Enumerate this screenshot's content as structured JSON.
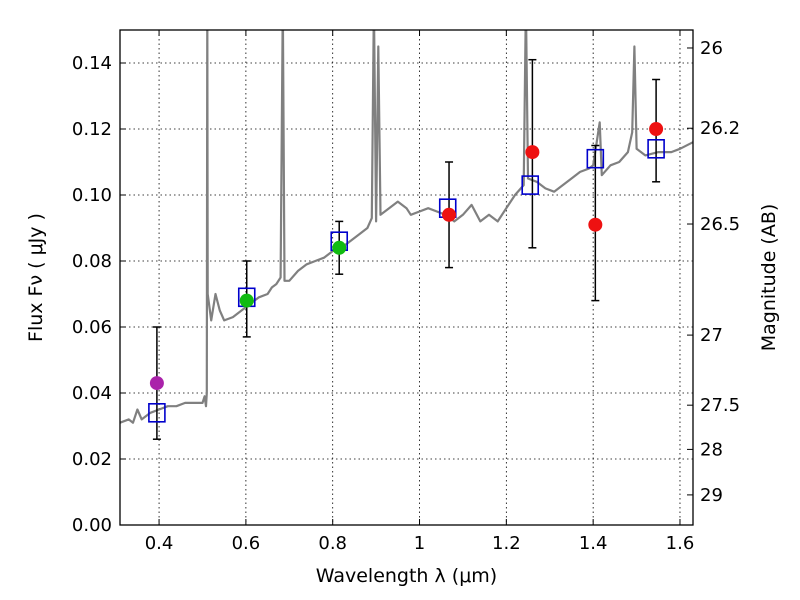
{
  "chart_data": {
    "type": "scatter",
    "xlabel": "Wavelength  λ (μm)",
    "ylabel": "Flux  Fν  ( μJy )",
    "y2label": "Magnitude (AB)",
    "xlim": [
      0.31,
      1.63
    ],
    "ylim": [
      0.0,
      0.15
    ],
    "grid": true,
    "x_ticks": [
      0.4,
      0.6,
      0.8,
      1.0,
      1.2,
      1.4,
      1.6
    ],
    "x_tick_labels": [
      "0.4",
      "0.6",
      "0.8",
      "1",
      "1.2",
      "1.4",
      "1.6"
    ],
    "y_ticks": [
      0.0,
      0.02,
      0.04,
      0.06,
      0.08,
      0.1,
      0.12,
      0.14
    ],
    "y_tick_labels": [
      "0.00",
      "0.02",
      "0.04",
      "0.06",
      "0.08",
      "0.10",
      "0.12",
      "0.14"
    ],
    "y2_ticks": [
      26,
      26.2,
      26.5,
      27,
      27.5,
      28,
      29
    ],
    "y2_tick_labels": [
      "26",
      "26.2",
      "26.5",
      "27",
      "27.5",
      "28",
      "29"
    ],
    "colors": {
      "spectrum": "#808080",
      "model": "#0000cc",
      "error": "#000000",
      "magenta": "#aa22aa",
      "green": "#11bb11",
      "red": "#ee1111"
    },
    "spectrum": [
      [
        0.31,
        0.031
      ],
      [
        0.33,
        0.032
      ],
      [
        0.34,
        0.031
      ],
      [
        0.35,
        0.035
      ],
      [
        0.36,
        0.032
      ],
      [
        0.38,
        0.034
      ],
      [
        0.4,
        0.035
      ],
      [
        0.42,
        0.036
      ],
      [
        0.44,
        0.036
      ],
      [
        0.46,
        0.037
      ],
      [
        0.48,
        0.037
      ],
      [
        0.5,
        0.037
      ],
      [
        0.505,
        0.039
      ],
      [
        0.508,
        0.036
      ],
      [
        0.51,
        0.04
      ],
      [
        0.511,
        0.158
      ],
      [
        0.512,
        0.07
      ],
      [
        0.52,
        0.062
      ],
      [
        0.53,
        0.07
      ],
      [
        0.54,
        0.065
      ],
      [
        0.55,
        0.062
      ],
      [
        0.57,
        0.063
      ],
      [
        0.59,
        0.065
      ],
      [
        0.61,
        0.067
      ],
      [
        0.63,
        0.069
      ],
      [
        0.65,
        0.07
      ],
      [
        0.66,
        0.072
      ],
      [
        0.67,
        0.073
      ],
      [
        0.68,
        0.075
      ],
      [
        0.685,
        0.158
      ],
      [
        0.689,
        0.074
      ],
      [
        0.7,
        0.074
      ],
      [
        0.72,
        0.077
      ],
      [
        0.74,
        0.079
      ],
      [
        0.76,
        0.08
      ],
      [
        0.78,
        0.081
      ],
      [
        0.8,
        0.083
      ],
      [
        0.82,
        0.084
      ],
      [
        0.84,
        0.086
      ],
      [
        0.86,
        0.088
      ],
      [
        0.88,
        0.09
      ],
      [
        0.89,
        0.093
      ],
      [
        0.895,
        0.158
      ],
      [
        0.9,
        0.092
      ],
      [
        0.905,
        0.145
      ],
      [
        0.91,
        0.094
      ],
      [
        0.93,
        0.096
      ],
      [
        0.95,
        0.098
      ],
      [
        0.97,
        0.096
      ],
      [
        0.98,
        0.094
      ],
      [
        1.0,
        0.095
      ],
      [
        1.02,
        0.096
      ],
      [
        1.04,
        0.095
      ],
      [
        1.06,
        0.094
      ],
      [
        1.08,
        0.092
      ],
      [
        1.1,
        0.094
      ],
      [
        1.12,
        0.097
      ],
      [
        1.14,
        0.092
      ],
      [
        1.16,
        0.094
      ],
      [
        1.18,
        0.092
      ],
      [
        1.2,
        0.096
      ],
      [
        1.22,
        0.1
      ],
      [
        1.24,
        0.103
      ],
      [
        1.245,
        0.158
      ],
      [
        1.25,
        0.105
      ],
      [
        1.27,
        0.104
      ],
      [
        1.29,
        0.102
      ],
      [
        1.31,
        0.101
      ],
      [
        1.33,
        0.103
      ],
      [
        1.35,
        0.105
      ],
      [
        1.37,
        0.107
      ],
      [
        1.39,
        0.108
      ],
      [
        1.4,
        0.109
      ],
      [
        1.415,
        0.122
      ],
      [
        1.42,
        0.106
      ],
      [
        1.44,
        0.109
      ],
      [
        1.46,
        0.11
      ],
      [
        1.48,
        0.113
      ],
      [
        1.49,
        0.119
      ],
      [
        1.495,
        0.145
      ],
      [
        1.5,
        0.114
      ],
      [
        1.52,
        0.112
      ],
      [
        1.55,
        0.113
      ],
      [
        1.58,
        0.113
      ],
      [
        1.6,
        0.114
      ],
      [
        1.63,
        0.116
      ]
    ],
    "model_points": [
      {
        "x": 0.395,
        "y": 0.034
      },
      {
        "x": 0.602,
        "y": 0.069
      },
      {
        "x": 0.815,
        "y": 0.086
      },
      {
        "x": 1.065,
        "y": 0.096
      },
      {
        "x": 1.255,
        "y": 0.103
      },
      {
        "x": 1.405,
        "y": 0.111
      },
      {
        "x": 1.545,
        "y": 0.114
      }
    ],
    "observed_points": [
      {
        "x": 0.395,
        "y": 0.043,
        "err_lo": 0.026,
        "err_hi": 0.06,
        "color": "magenta"
      },
      {
        "x": 0.602,
        "y": 0.068,
        "err_lo": 0.057,
        "err_hi": 0.08,
        "color": "green"
      },
      {
        "x": 0.815,
        "y": 0.084,
        "err_lo": 0.076,
        "err_hi": 0.092,
        "color": "green"
      },
      {
        "x": 1.068,
        "y": 0.094,
        "err_lo": 0.078,
        "err_hi": 0.11,
        "color": "red"
      },
      {
        "x": 1.26,
        "y": 0.113,
        "err_lo": 0.084,
        "err_hi": 0.141,
        "color": "red"
      },
      {
        "x": 1.405,
        "y": 0.091,
        "err_lo": 0.068,
        "err_hi": 0.115,
        "color": "red"
      },
      {
        "x": 1.545,
        "y": 0.12,
        "err_lo": 0.104,
        "err_hi": 0.135,
        "color": "red"
      }
    ]
  }
}
